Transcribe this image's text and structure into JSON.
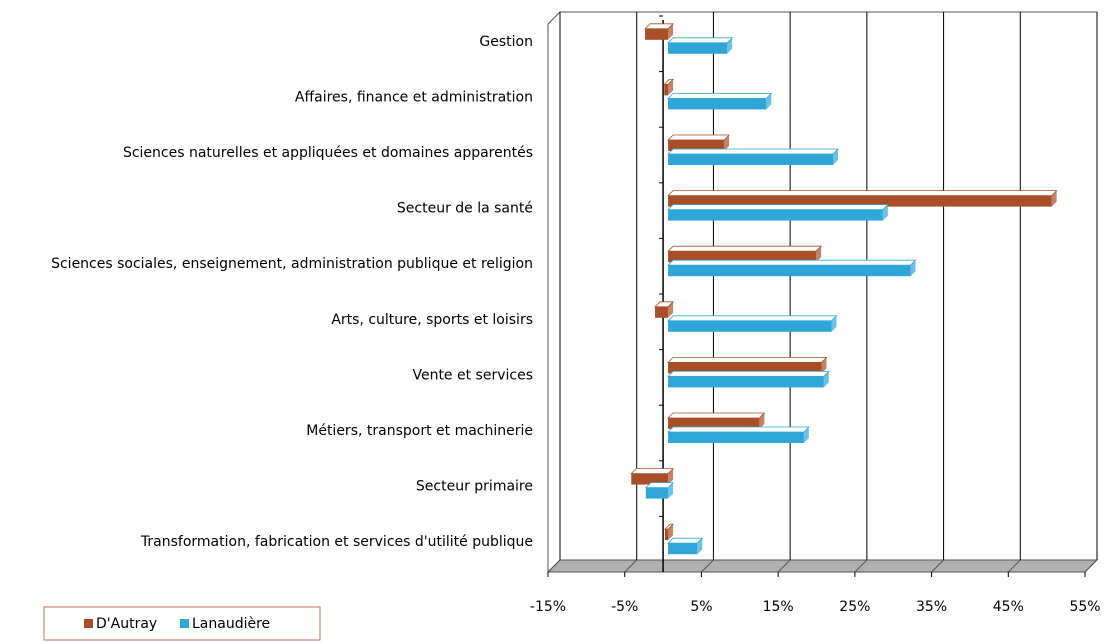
{
  "chart_data": {
    "type": "bar",
    "orientation": "horizontal",
    "categories": [
      "Gestion",
      "Affaires, finance et administration",
      "Sciences naturelles et appliquées et domaines apparentés",
      "Secteur de la santé",
      "Sciences sociales, enseignement, administration publique et religion",
      "Arts, culture, sports et loisirs",
      "Vente et services",
      "Métiers, transport et machinerie",
      "Secteur primaire",
      "Transformation, fabrication et services d'utilité publique"
    ],
    "series": [
      {
        "name": "D'Autray",
        "color": "#a94f27",
        "values": [
          -3,
          -0.5,
          7.3,
          50,
          19.3,
          -1.7,
          20,
          11.9,
          -4.8,
          -0.4
        ]
      },
      {
        "name": "Lanaudière",
        "color": "#2ea7d8",
        "values": [
          7.7,
          12.8,
          21.5,
          28,
          31.6,
          21.3,
          20.3,
          17.7,
          -2.9,
          3.8
        ]
      }
    ],
    "xlim": [
      -15,
      55
    ],
    "xticks": [
      {
        "value": -15,
        "label": "-15%"
      },
      {
        "value": -5,
        "label": "-5%"
      },
      {
        "value": 5,
        "label": "5%"
      },
      {
        "value": 15,
        "label": "15%"
      },
      {
        "value": 25,
        "label": "25%"
      },
      {
        "value": 35,
        "label": "35%"
      },
      {
        "value": 45,
        "label": "45%"
      },
      {
        "value": 55,
        "label": "55%"
      }
    ],
    "grid": true,
    "legend": "bottom-left"
  }
}
